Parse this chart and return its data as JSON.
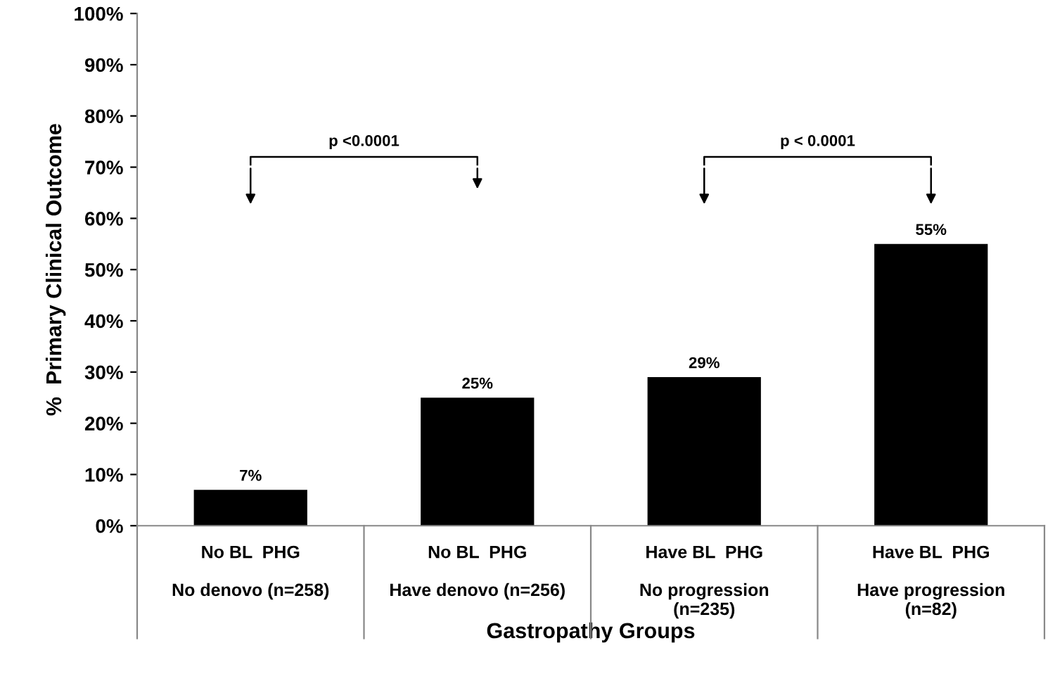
{
  "chart_data": {
    "type": "bar",
    "ylabel": "%  Primary Clinical Outcome",
    "xlabel": "Gastropathy Groups",
    "categories": [
      "No BL  PHG\n\nNo denovo (n=258)",
      "No BL  PHG\n\nHave denovo (n=256)",
      "Have BL  PHG\n\nNo progression\n(n=235)",
      "Have BL  PHG\n\nHave progression\n(n=82)"
    ],
    "values": [
      7,
      25,
      29,
      55
    ],
    "color": "#000000",
    "value_labels": [
      "7%",
      "25%",
      "29%",
      "55%"
    ],
    "ylim": [
      0,
      100
    ],
    "yticks": [
      {
        "value": 0,
        "label": "0%"
      },
      {
        "value": 10,
        "label": "10%"
      },
      {
        "value": 20,
        "label": "20%"
      },
      {
        "value": 30,
        "label": "30%"
      },
      {
        "value": 40,
        "label": "40%"
      },
      {
        "value": 50,
        "label": "50%"
      },
      {
        "value": 60,
        "label": "60%"
      },
      {
        "value": 70,
        "label": "70%"
      },
      {
        "value": 80,
        "label": "80%"
      },
      {
        "value": 90,
        "label": "90%"
      },
      {
        "value": 100,
        "label": "100%"
      }
    ],
    "annotations": [
      "p <0.0001",
      "p < 0.0001"
    ],
    "grid": false,
    "legend": false
  }
}
